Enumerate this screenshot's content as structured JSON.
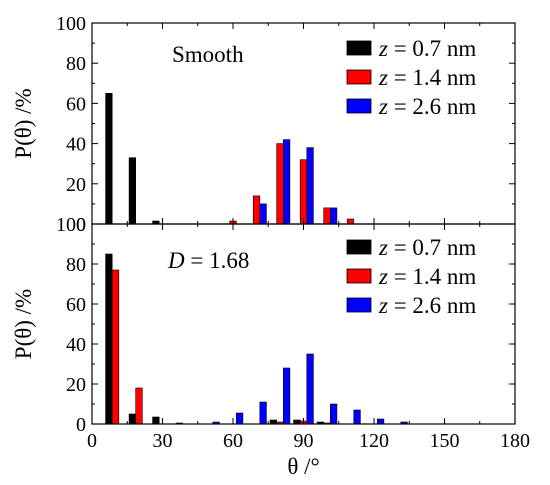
{
  "chart_data": [
    {
      "type": "bar",
      "annotation_prefix": "",
      "annotation_value": "Smooth",
      "ylabel": "P(θ) /%",
      "xlabel": "",
      "xlim": [
        0,
        180
      ],
      "ylim": [
        0,
        100
      ],
      "yticks": [
        "0",
        "20",
        "40",
        "60",
        "80",
        "100"
      ],
      "legend_position": "top-right",
      "series": [
        {
          "name": "z = 0.7 nm",
          "color": "#000000",
          "x": [
            10,
            20,
            30,
            40,
            50,
            60,
            70,
            80,
            90,
            100,
            110
          ],
          "values": [
            65,
            33,
            1.5,
            0,
            0,
            0,
            0,
            0,
            0,
            0,
            0
          ]
        },
        {
          "name": "z = 1.4 nm",
          "color": "#ff0000",
          "x": [
            10,
            20,
            30,
            40,
            50,
            60,
            70,
            80,
            90,
            100,
            110
          ],
          "values": [
            0,
            0,
            0,
            0,
            0,
            1.5,
            14,
            40,
            32,
            8,
            2.5
          ]
        },
        {
          "name": "z = 2.6 nm",
          "color": "#0000ff",
          "x": [
            10,
            20,
            30,
            40,
            50,
            60,
            70,
            80,
            90,
            100,
            110
          ],
          "values": [
            0,
            0,
            0,
            0,
            0,
            0,
            10,
            42,
            38,
            8,
            0
          ]
        }
      ]
    },
    {
      "type": "bar",
      "annotation_prefix": "D",
      "annotation_value": " = 1.68",
      "ylabel": "P(θ) /%",
      "xlabel": "θ /°",
      "xlim": [
        0,
        180
      ],
      "ylim": [
        0,
        100
      ],
      "yticks": [
        "0",
        "20",
        "40",
        "60",
        "80",
        "100"
      ],
      "xticks": [
        "0",
        "30",
        "60",
        "90",
        "120",
        "150",
        "180"
      ],
      "legend_position": "top-right",
      "series": [
        {
          "name": "z = 0.7 nm",
          "color": "#000000",
          "x": [
            10,
            20,
            30,
            40,
            50,
            60,
            70,
            80,
            90,
            100,
            110,
            120,
            130
          ],
          "values": [
            85,
            5,
            3.5,
            0.5,
            0,
            0,
            0,
            2,
            2,
            1,
            0,
            0,
            0
          ]
        },
        {
          "name": "z = 1.4 nm",
          "color": "#ff0000",
          "x": [
            10,
            20,
            30,
            40,
            50,
            60,
            70,
            80,
            90,
            100,
            110,
            120,
            130
          ],
          "values": [
            77,
            18,
            0,
            0,
            0,
            0,
            0,
            1,
            1.5,
            0.5,
            0,
            0,
            0
          ]
        },
        {
          "name": "z = 2.6 nm",
          "color": "#0000ff",
          "x": [
            10,
            20,
            30,
            40,
            50,
            60,
            70,
            80,
            90,
            100,
            110,
            120,
            130
          ],
          "values": [
            0,
            0,
            0,
            0,
            1,
            5.5,
            11,
            28,
            35,
            10,
            7,
            2.5,
            1
          ]
        }
      ]
    }
  ]
}
